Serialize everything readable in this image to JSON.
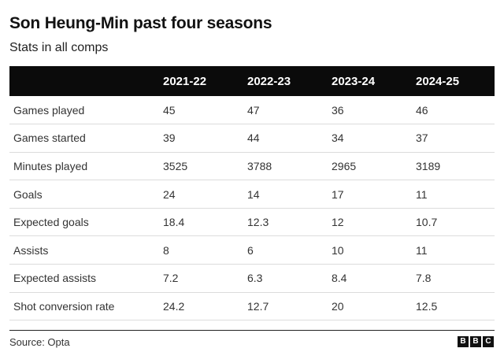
{
  "header": {
    "title": "Son Heung-Min past four seasons",
    "subtitle": "Stats in all comps"
  },
  "table": {
    "columns": [
      "",
      "2021-22",
      "2022-23",
      "2023-24",
      "2024-25"
    ],
    "rows": [
      [
        "Games played",
        "45",
        "47",
        "36",
        "46"
      ],
      [
        "Games started",
        "39",
        "44",
        "34",
        "37"
      ],
      [
        "Minutes played",
        "3525",
        "3788",
        "2965",
        "3189"
      ],
      [
        "Goals",
        "24",
        "14",
        "17",
        "11"
      ],
      [
        "Expected goals",
        "18.4",
        "12.3",
        "12",
        "10.7"
      ],
      [
        "Assists",
        "8",
        "6",
        "10",
        "11"
      ],
      [
        "Expected assists",
        "7.2",
        "6.3",
        "8.4",
        "7.8"
      ],
      [
        "Shot conversion rate",
        "24.2",
        "12.7",
        "20",
        "12.5"
      ]
    ]
  },
  "footer": {
    "source": "Source: Opta",
    "logo_letters": [
      "B",
      "B",
      "C"
    ]
  },
  "colors": {
    "header_bg": "#0b0b0b",
    "header_text": "#ffffff",
    "row_divider": "#dcdcdc"
  }
}
